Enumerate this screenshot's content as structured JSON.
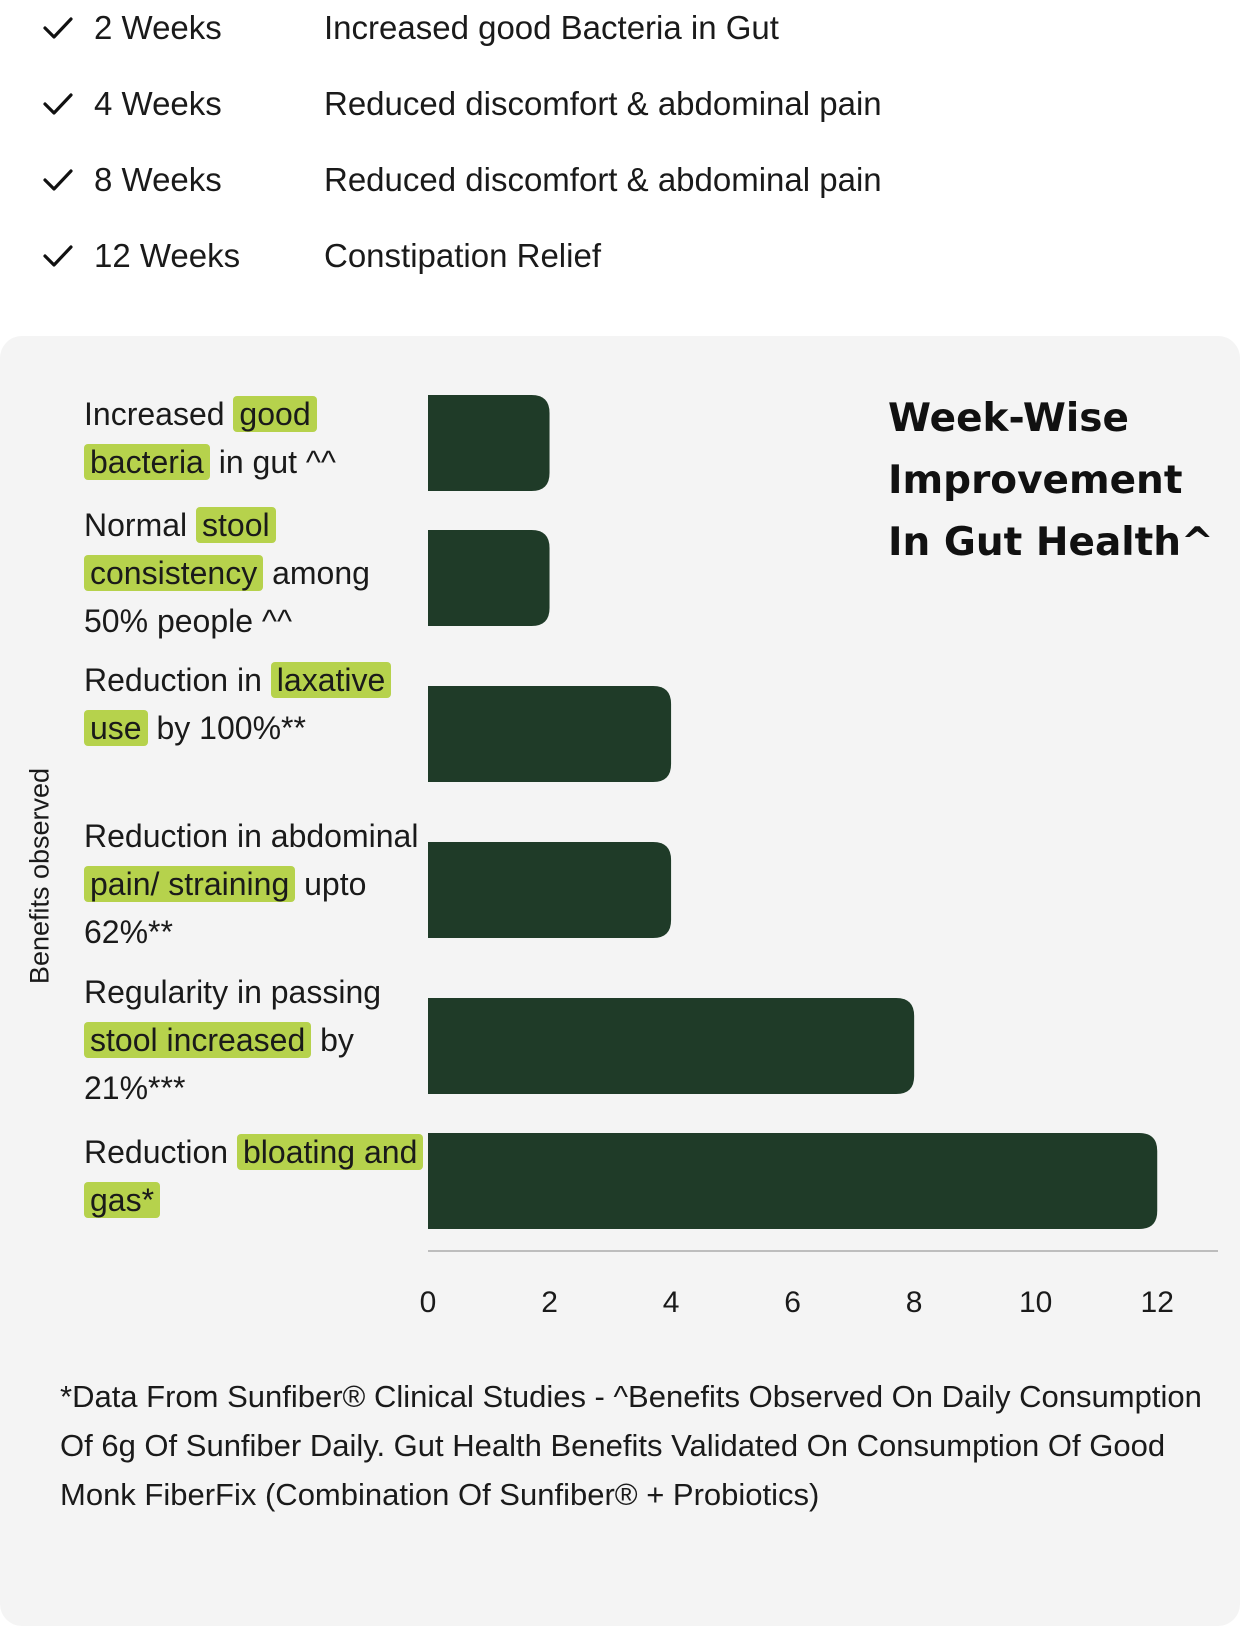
{
  "timeline": [
    {
      "weeks": "2 Weeks",
      "benefit": "Increased good Bacteria in Gut"
    },
    {
      "weeks": "4 Weeks",
      "benefit": "Reduced discomfort & abdominal pain"
    },
    {
      "weeks": "8 Weeks",
      "benefit": "Reduced discomfort & abdominal pain"
    },
    {
      "weeks": "12 Weeks",
      "benefit": "Constipation Relief"
    }
  ],
  "icons": {
    "timeline_marker": "checkmark-icon"
  },
  "colors": {
    "bar": "#1f3b28",
    "highlight": "#b6d24c",
    "card_bg": "#f4f4f4",
    "axis": "#bdbdbd"
  },
  "chart_data": {
    "type": "bar",
    "orientation": "horizontal",
    "title": "Week-Wise Improvement In Gut Health^",
    "ylabel": "Benefits observed",
    "xlabel": "",
    "xlim": [
      0,
      13
    ],
    "x_ticks": [
      "0",
      "2",
      "4",
      "6",
      "8",
      "10",
      "12"
    ],
    "grid": false,
    "categories": [
      [
        {
          "t": "Increased "
        },
        {
          "t": "good bacteria",
          "hl": true
        },
        {
          "t": " in gut ^^"
        }
      ],
      [
        {
          "t": "Normal "
        },
        {
          "t": "stool consistency",
          "hl": true
        },
        {
          "t": " among 50% people ^^"
        }
      ],
      [
        {
          "t": "Reduction in "
        },
        {
          "t": "laxative use",
          "hl": true
        },
        {
          "t": " by 100%**"
        }
      ],
      [
        {
          "t": "Reduction in abdominal "
        },
        {
          "t": "pain/ straining",
          "hl": true
        },
        {
          "t": " upto 62%**"
        }
      ],
      [
        {
          "t": "Regularity in passing "
        },
        {
          "t": "stool increased",
          "hl": true
        },
        {
          "t": " by 21%***"
        }
      ],
      [
        {
          "t": "Reduction "
        },
        {
          "t": "bloating and gas*",
          "hl": true
        }
      ]
    ],
    "values": [
      2,
      2,
      4,
      4,
      8,
      12
    ]
  },
  "footnote": "*Data From Sunfiber® Clinical Studies - ^Benefits Observed On Daily Consumption Of 6g Of Sunfiber Daily. Gut Health Benefits Validated On Consumption Of Good Monk FiberFix (Combination Of Sunfiber® + Probiotics)"
}
